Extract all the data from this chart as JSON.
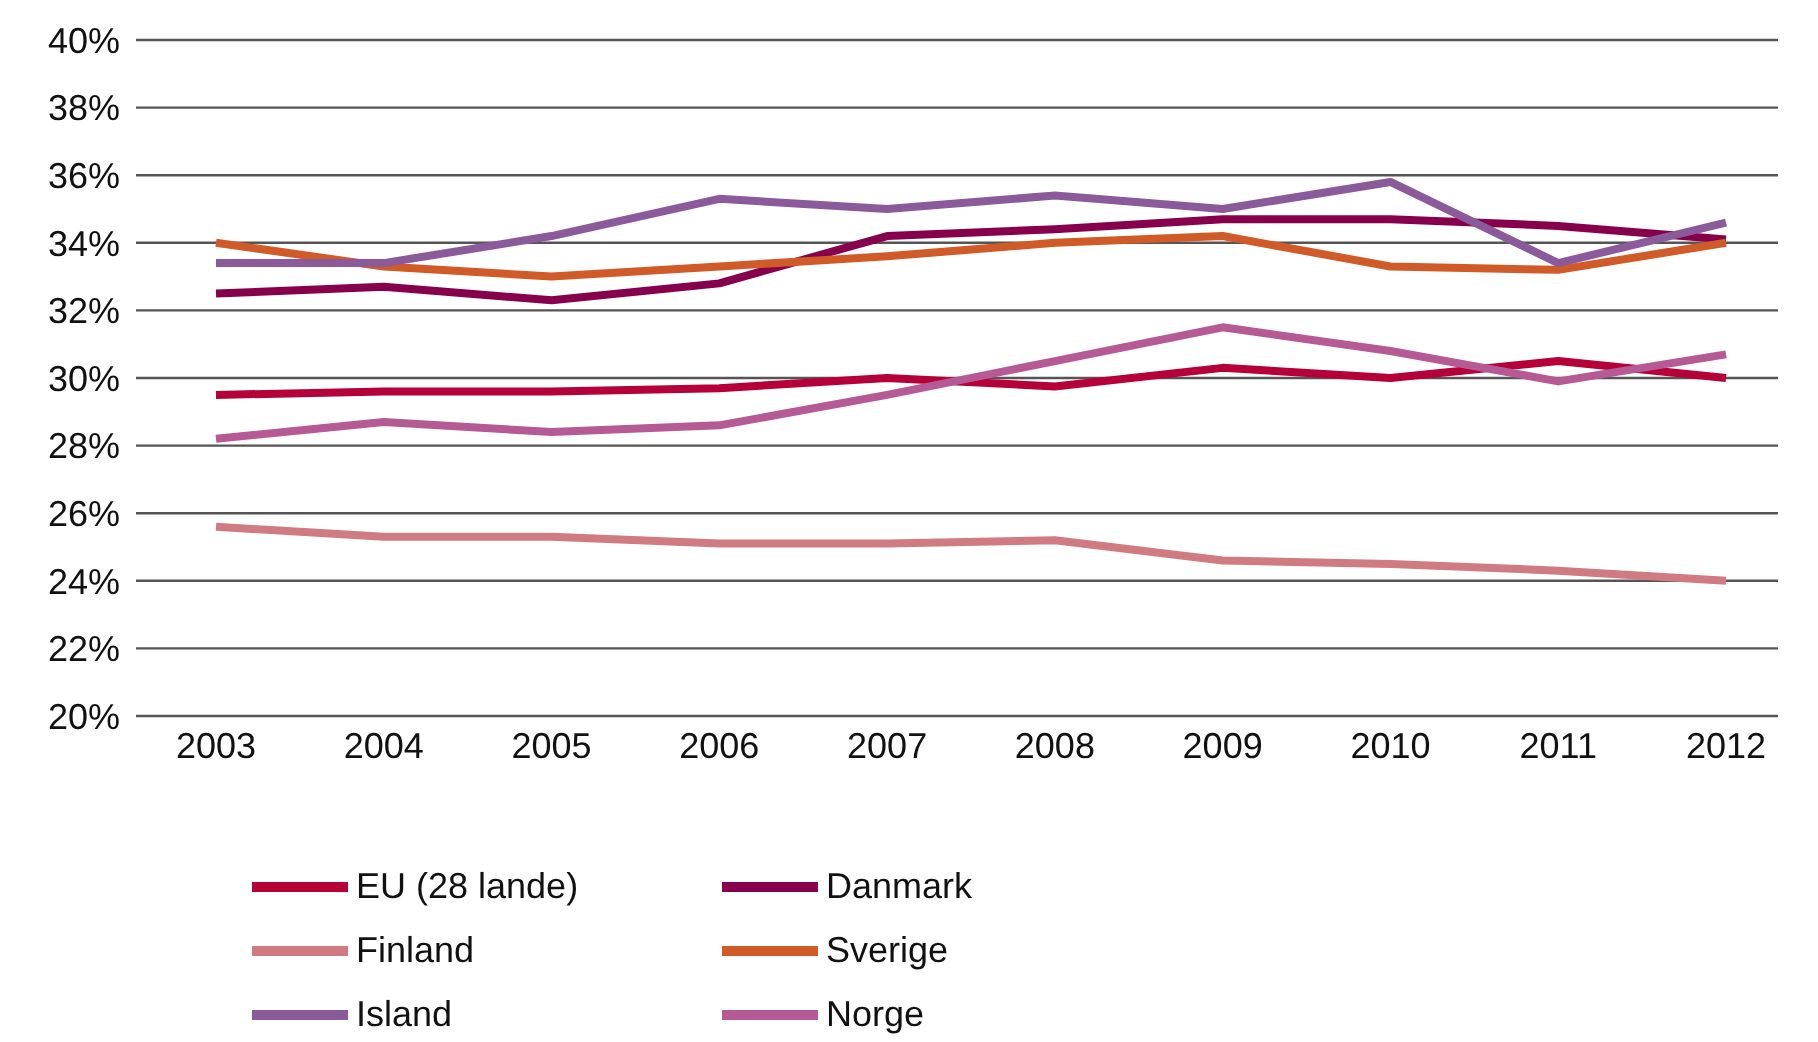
{
  "chart_data": {
    "type": "line",
    "categories": [
      "2003",
      "2004",
      "2005",
      "2006",
      "2007",
      "2008",
      "2009",
      "2010",
      "2011",
      "2012"
    ],
    "series": [
      {
        "name": "EU (28 lande)",
        "color": "#b5003a",
        "values": [
          29.5,
          29.6,
          29.6,
          29.7,
          30.0,
          29.75,
          30.3,
          30.0,
          30.5,
          30.0
        ]
      },
      {
        "name": "Danmark",
        "color": "#86004c",
        "values": [
          32.5,
          32.7,
          32.3,
          32.8,
          34.2,
          34.4,
          34.7,
          34.7,
          34.5,
          34.1
        ]
      },
      {
        "name": "Finland",
        "color": "#d07a82",
        "values": [
          25.6,
          25.3,
          25.3,
          25.1,
          25.1,
          25.2,
          24.6,
          24.5,
          24.3,
          24.0
        ]
      },
      {
        "name": "Sverige",
        "color": "#d05a28",
        "values": [
          34.0,
          33.3,
          33.0,
          33.3,
          33.6,
          34.0,
          34.2,
          33.3,
          33.2,
          34.0
        ]
      },
      {
        "name": "Island",
        "color": "#8b5a9a",
        "values": [
          33.4,
          33.4,
          34.2,
          35.3,
          35.0,
          35.4,
          35.0,
          35.8,
          33.4,
          34.6
        ]
      },
      {
        "name": "Norge",
        "color": "#b65a95",
        "values": [
          28.2,
          28.7,
          28.4,
          28.6,
          29.5,
          30.5,
          31.5,
          30.8,
          29.9,
          30.7
        ]
      }
    ],
    "ylim": [
      20,
      40
    ],
    "yticks": [
      {
        "value": 20,
        "label": "20%"
      },
      {
        "value": 22,
        "label": "22%"
      },
      {
        "value": 24,
        "label": "24%"
      },
      {
        "value": 26,
        "label": "26%"
      },
      {
        "value": 28,
        "label": "28%"
      },
      {
        "value": 30,
        "label": "30%"
      },
      {
        "value": 32,
        "label": "32%"
      },
      {
        "value": 34,
        "label": "34%"
      },
      {
        "value": 36,
        "label": "36%"
      },
      {
        "value": 38,
        "label": "38%"
      },
      {
        "value": 40,
        "label": "40%"
      }
    ],
    "grid": "y",
    "legend": "bottom",
    "marker": "none",
    "line_style": "solid"
  }
}
